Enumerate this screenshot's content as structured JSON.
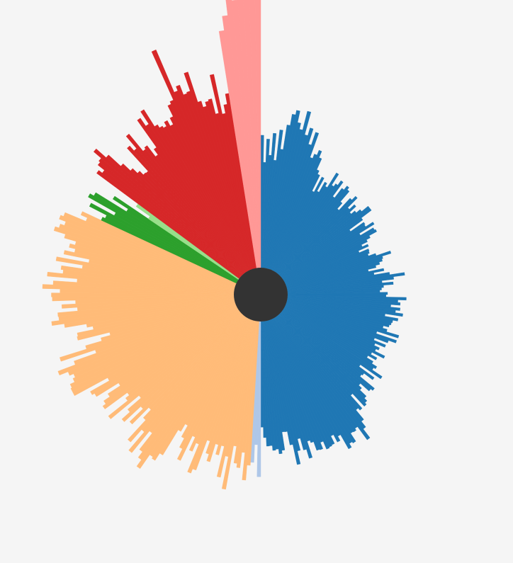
{
  "chart_data": {
    "type": "radial-bar",
    "title": "",
    "legend": "none",
    "grid": false,
    "max_value": 100,
    "colors": {
      "background": "#f5f5f5",
      "center": "#333333"
    },
    "groups": [
      {
        "name": "",
        "color": "#1f77b4",
        "start_angle": 0,
        "end_angle": 180,
        "values": [
          43.0,
          34.2,
          41.8,
          36.6,
          43.8,
          35.1,
          45.1,
          38.9,
          47.0,
          50.7,
          52.2,
          48.4,
          46.4,
          52.7,
          45.1,
          47.7,
          42.5,
          46.9,
          38.6,
          40.1,
          41.8,
          39.6,
          35.7,
          34.5,
          28.8,
          34.3,
          29.5,
          33.3,
          32.2,
          37.8,
          33.6,
          34.7,
          36.5,
          30.8,
          34.7,
          36.3,
          35.4,
          31.0,
          28.6,
          33.9,
          35.6,
          31.2,
          33.4,
          30.6,
          32.1,
          33.7,
          36.4,
          36.4,
          32.3,
          26.9,
          32.1,
          31.8,
          34.6,
          28.9,
          33.7,
          34.1,
          31.3,
          29.9,
          27.7,
          29.6,
          26.0,
          29.2,
          29.0,
          28.4,
          30.8,
          35.6,
          32.6,
          32.2,
          31.1,
          29.7,
          27.0,
          32.0,
          28.6,
          33.6,
          38.4,
          34.7,
          30.8,
          34.4,
          31.2,
          30.5,
          29.9,
          32.4,
          31.9,
          38.5,
          35.8,
          36.6,
          33.6,
          36.7,
          35.3,
          37.8,
          32.1,
          36.5,
          34.9,
          34.6,
          34.1,
          32.3,
          33.8,
          38.0,
          30.8,
          37.8,
          35.3,
          30.8,
          35.0,
          31.6,
          33.5,
          32.6,
          36.2,
          31.9,
          34.2,
          31.3,
          33.7,
          35.6,
          34.9,
          38.8,
          30.8,
          36.9,
          33.4,
          33.0,
          39.1,
          38.3,
          34.6,
          35.9,
          38.8,
          40.0,
          40.7,
          35.1,
          40.7,
          39.8,
          43.8,
          46.1,
          49.7,
          44.4,
          45.1,
          44.9,
          48.0,
          47.5,
          48.9,
          43.6,
          45.2,
          42.5,
          45.2,
          45.5,
          45.8,
          43.0,
          45.2,
          45.0,
          42.0,
          41.2,
          46.7,
          43.6,
          39.6,
          43.4,
          47.7,
          41.0,
          36.5,
          36.4,
          42.3,
          43.3,
          41.7,
          42.0,
          40.4,
          40.5,
          37.7,
          34.3
        ]
      },
      {
        "name": "",
        "color": "#aec7e8",
        "start_angle": 180,
        "end_angle": 183.5,
        "values": [
          50.4,
          40.0,
          45.8
        ]
      },
      {
        "name": "",
        "color": "#ffbb78",
        "start_angle": 183.5,
        "end_angle": 295,
        "values": [
          46.8,
          51.7,
          42.8,
          47.9,
          46.6,
          41.1,
          55.5,
          44.9,
          52.0,
          41.9,
          45.1,
          41.9,
          48.0,
          45.7,
          41.6,
          52.0,
          53.5,
          43.8,
          46.8,
          42.2,
          51.1,
          47.4,
          44.1,
          39.9,
          42.7,
          52.3,
          55.1,
          54.5,
          60.0,
          57.4,
          55.1,
          48.4,
          57.5,
          49.7,
          55.1,
          46.5,
          42.9,
          50.5,
          44.5,
          51.8,
          48.3,
          42.6,
          54.5,
          46.5,
          45.0,
          54.0,
          52.8,
          50.4,
          45.6,
          54.0,
          54.9,
          47.8,
          60.0,
          60.0,
          59.6,
          58.0,
          57.2,
          58.6,
          61.6,
          55.6,
          47.9,
          59.6,
          50.5,
          45.0,
          41.8,
          52.4,
          52.1,
          46.7,
          48.6,
          55.7,
          59.7,
          57.2,
          57.4,
          50.9,
          55.9,
          51.4,
          58.9,
          59.2,
          56.4,
          62.1,
          58.7,
          51.0,
          60.8,
          55.8,
          56.6,
          49.8,
          58.6,
          48.0,
          56.5,
          53.2,
          55.3,
          53.6,
          57.6,
          61.5,
          60.2,
          58.8,
          61.1,
          60.1,
          52.8,
          55.1
        ]
      },
      {
        "name": "",
        "color": "#2ca02c",
        "start_angle": 295,
        "end_angle": 304,
        "values": [
          48.4,
          47.5,
          53.8,
          45.3,
          55.6,
          54.2,
          42.5,
          48.4
        ]
      },
      {
        "name": "",
        "color": "#98df8a",
        "start_angle": 304,
        "end_angle": 306.5,
        "values": [
          35.3,
          40.8
        ]
      },
      {
        "name": "",
        "color": "#d62728",
        "start_angle": 306.5,
        "end_angle": 351,
        "values": [
          57.5,
          56.1,
          58.8,
          59.4,
          62.6,
          58.3,
          52.9,
          49.6,
          47.4,
          45.7,
          45.5,
          55.6,
          53.5,
          58.7,
          51.5,
          52.1,
          47.6,
          49.8,
          60.6,
          57.5,
          62.3,
          55.8,
          54.6,
          53.9,
          55.4,
          53.4,
          55.7,
          59.6,
          60.5,
          77.7,
          62.7,
          64.2,
          60.8,
          61.2,
          67.3,
          57.0,
          54.9,
          56.3,
          56.8,
          51.7,
          64.4,
          51.2,
          54.0,
          57.4
        ]
      },
      {
        "name": "",
        "color": "#ff9896",
        "start_angle": 351,
        "end_angle": 360,
        "values": [
          77.8,
          82.5,
          88.2,
          87.2,
          88.5,
          88.7,
          89.1,
          90.3
        ]
      }
    ]
  }
}
